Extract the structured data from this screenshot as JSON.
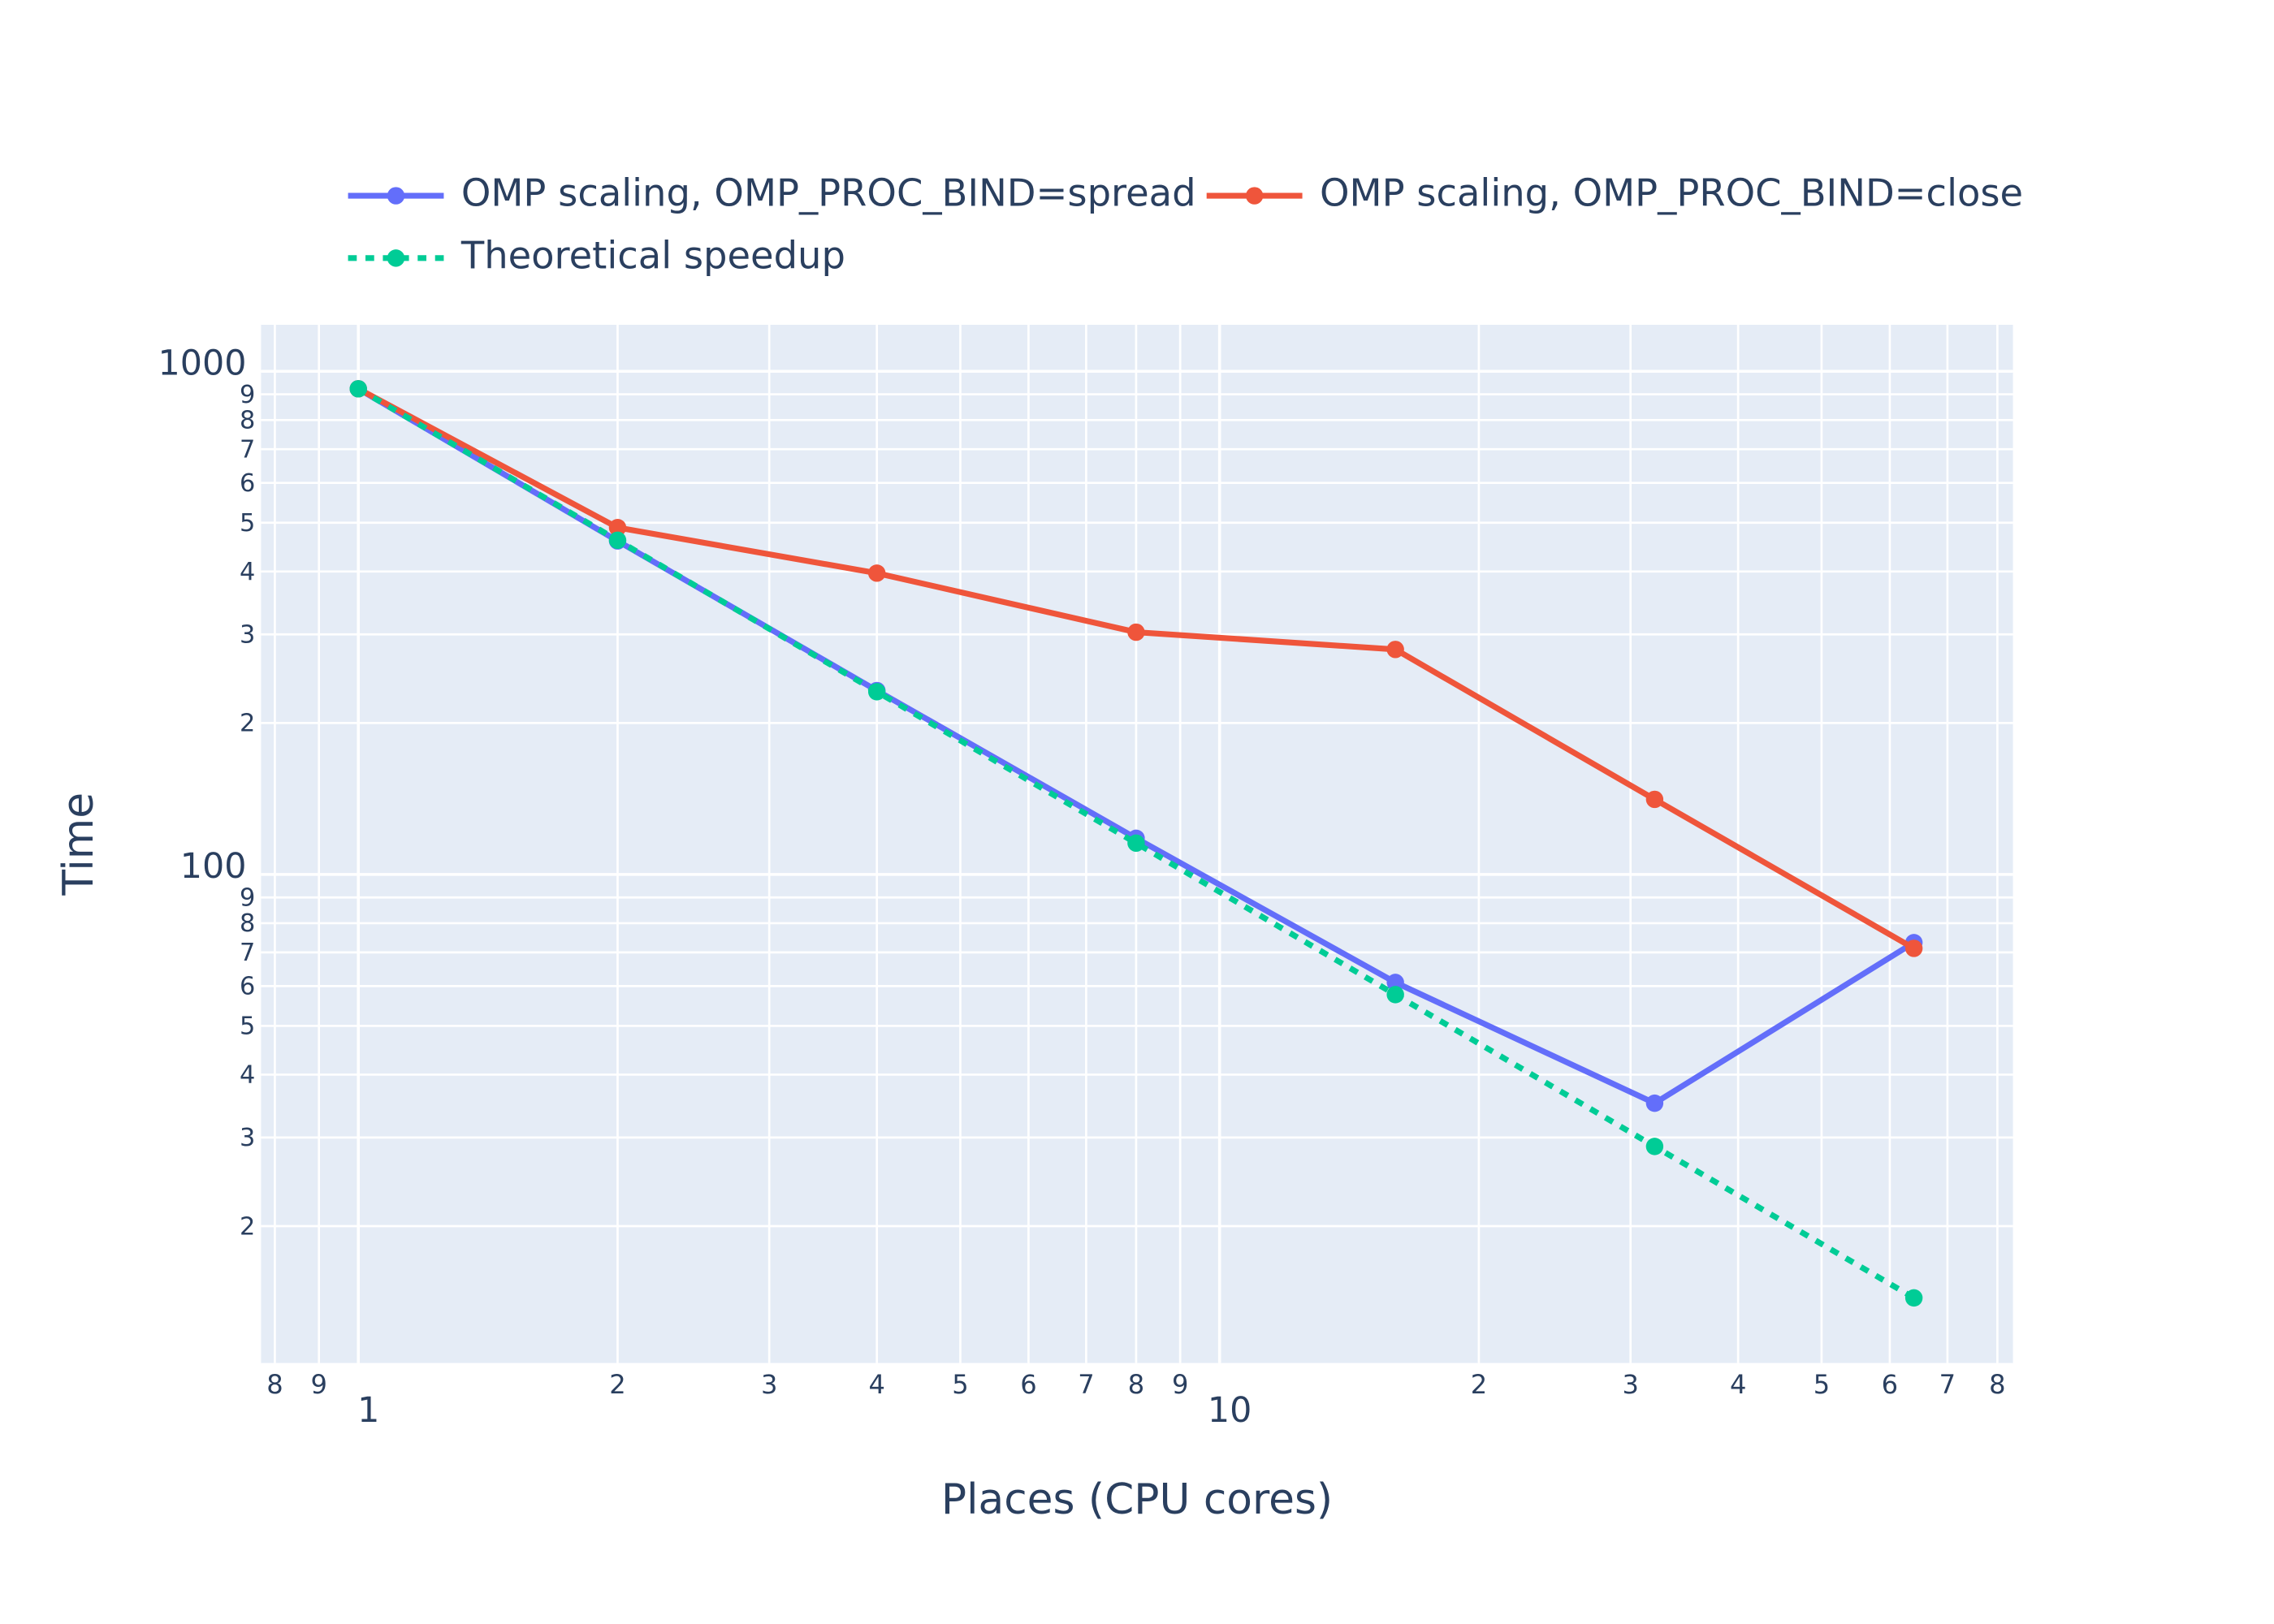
{
  "chart_data": {
    "type": "line",
    "x_label": "Places (CPU cores)",
    "y_label": "Time",
    "x_log": true,
    "y_log": true,
    "grid": true,
    "legend": "top",
    "x": [
      1,
      2,
      4,
      8,
      16,
      32,
      64
    ],
    "series": [
      {
        "name": "OMP scaling, OMP_PROC_BIND=spread",
        "color": "#636efa",
        "dash": "solid",
        "values": [
          923,
          460,
          232,
          118,
          61,
          35.1,
          73.2
        ]
      },
      {
        "name": "OMP scaling, OMP_PROC_BIND=close",
        "color": "#ef553b",
        "dash": "solid",
        "values": [
          923,
          489,
          397,
          303,
          280,
          141,
          71.3
        ]
      },
      {
        "name": "Theoretical speedup",
        "color": "#00cc96",
        "dash": "dot",
        "values": [
          923,
          461.5,
          230.75,
          115.4,
          57.7,
          28.8,
          14.4
        ]
      }
    ],
    "xlim": [
      0.771,
      83.4
    ],
    "xticks": [
      {
        "value": 0.8,
        "label": "8"
      },
      {
        "value": 0.9,
        "label": "9"
      },
      1,
      2,
      3,
      4,
      5,
      6,
      7,
      8,
      9,
      10,
      {
        "value": 20,
        "label": "2"
      },
      {
        "value": 30,
        "label": "3"
      },
      {
        "value": 40,
        "label": "4"
      },
      {
        "value": 50,
        "label": "5"
      },
      {
        "value": 60,
        "label": "6"
      },
      {
        "value": 70,
        "label": "7"
      },
      {
        "value": 80,
        "label": "8"
      }
    ],
    "ylim": [
      10.69,
      1237
    ],
    "yticks": [
      {
        "value": 20,
        "label": "2"
      },
      {
        "value": 30,
        "label": "3"
      },
      {
        "value": 40,
        "label": "4"
      },
      {
        "value": 50,
        "label": "5"
      },
      {
        "value": 60,
        "label": "6"
      },
      {
        "value": 70,
        "label": "7"
      },
      {
        "value": 80,
        "label": "8"
      },
      {
        "value": 90,
        "label": "9"
      },
      100,
      {
        "value": 200,
        "label": "2"
      },
      {
        "value": 300,
        "label": "3"
      },
      {
        "value": 400,
        "label": "4"
      },
      {
        "value": 500,
        "label": "5"
      },
      {
        "value": 600,
        "label": "6"
      },
      {
        "value": 700,
        "label": "7"
      },
      {
        "value": 800,
        "label": "8"
      },
      {
        "value": 900,
        "label": "9"
      },
      1000
    ]
  }
}
